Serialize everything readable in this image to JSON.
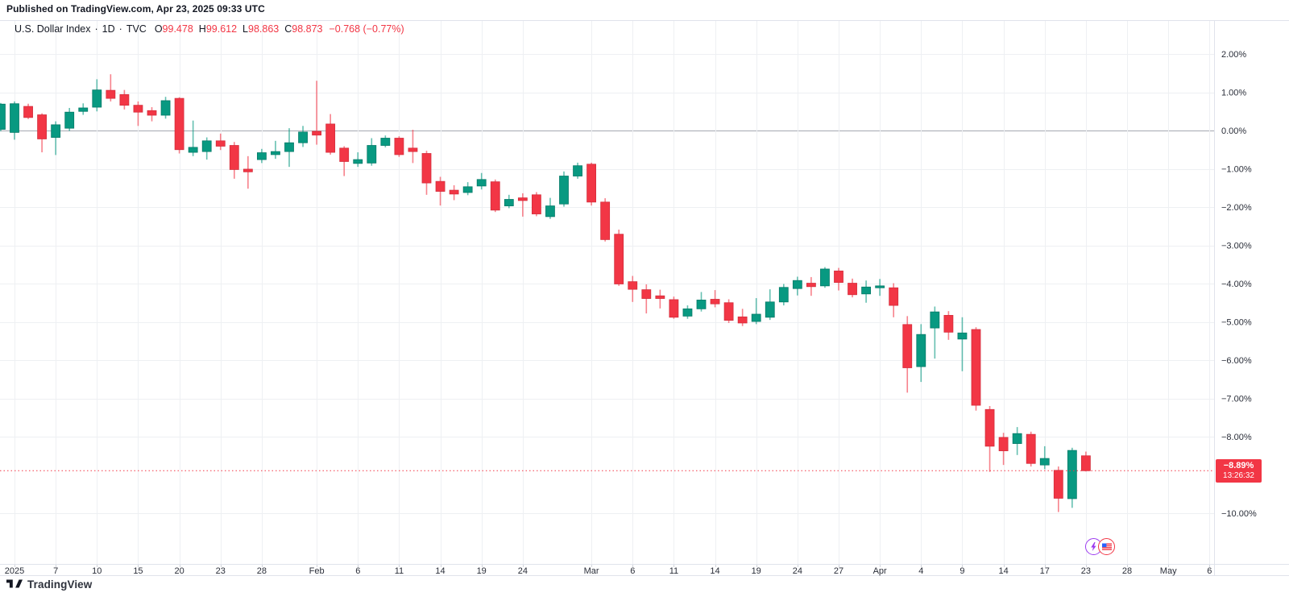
{
  "header": {
    "published": "Published on TradingView.com, Apr 23, 2025 09:33 UTC"
  },
  "legend": {
    "title": "U.S. Dollar Index",
    "separator": "·",
    "interval": "1D",
    "exchange": "TVC",
    "o_label": "O",
    "o_value": "99.478",
    "h_label": "H",
    "h_value": "99.612",
    "l_label": "L",
    "l_value": "98.863",
    "c_label": "C",
    "c_value": "98.873",
    "change": "−0.768 (−0.77%)"
  },
  "price_scale": {
    "unit": "%",
    "labels": [
      {
        "text": "2.00%",
        "pct": 2
      },
      {
        "text": "1.00%",
        "pct": 1
      },
      {
        "text": "0.00%",
        "pct": 0
      },
      {
        "text": "−1.00%",
        "pct": -1
      },
      {
        "text": "−2.00%",
        "pct": -2
      },
      {
        "text": "−3.00%",
        "pct": -3
      },
      {
        "text": "−4.00%",
        "pct": -4
      },
      {
        "text": "−5.00%",
        "pct": -5
      },
      {
        "text": "−6.00%",
        "pct": -6
      },
      {
        "text": "−7.00%",
        "pct": -7
      },
      {
        "text": "−8.00%",
        "pct": -8
      },
      {
        "text": "−10.00%",
        "pct": -10
      }
    ],
    "badge": {
      "price": "−8.89%",
      "countdown": "13:26:32",
      "pct": -8.89
    }
  },
  "time_scale": {
    "labels": [
      {
        "text": "2025",
        "i": 0
      },
      {
        "text": "7",
        "i": 3
      },
      {
        "text": "10",
        "i": 6
      },
      {
        "text": "15",
        "i": 9
      },
      {
        "text": "20",
        "i": 12
      },
      {
        "text": "23",
        "i": 15
      },
      {
        "text": "28",
        "i": 18
      },
      {
        "text": "Feb",
        "i": 22
      },
      {
        "text": "6",
        "i": 25
      },
      {
        "text": "11",
        "i": 28
      },
      {
        "text": "14",
        "i": 31
      },
      {
        "text": "19",
        "i": 34
      },
      {
        "text": "24",
        "i": 37
      },
      {
        "text": "Mar",
        "i": 42
      },
      {
        "text": "6",
        "i": 45
      },
      {
        "text": "11",
        "i": 48
      },
      {
        "text": "14",
        "i": 51
      },
      {
        "text": "19",
        "i": 54
      },
      {
        "text": "24",
        "i": 57
      },
      {
        "text": "27",
        "i": 60
      },
      {
        "text": "Apr",
        "i": 63
      },
      {
        "text": "4",
        "i": 66
      },
      {
        "text": "9",
        "i": 69
      },
      {
        "text": "14",
        "i": 72
      },
      {
        "text": "17",
        "i": 75
      },
      {
        "text": "23",
        "i": 78
      },
      {
        "text": "28",
        "i": 81
      },
      {
        "text": "May",
        "i": 84
      },
      {
        "text": "6",
        "i": 87
      }
    ]
  },
  "events": [
    {
      "name": "economic-event-lightning",
      "i": 78
    },
    {
      "name": "economic-event-us-flag",
      "i": 79
    }
  ],
  "colors": {
    "up": "#089981",
    "up_border": "#067a68",
    "down": "#f23645",
    "down_border": "#d42e3c",
    "grid": "#eef0f3",
    "zero_line": "#a5a8b1",
    "frame": "#e0e3eb",
    "tick": "#d1d4dc",
    "text": "#2a2e39",
    "accent_red": "#f23645",
    "event_purple": "#9c3bf0",
    "flag_blue": "#2962ff"
  },
  "branding": {
    "logo_text": "TradingView"
  },
  "chart_data": {
    "type": "candlestick",
    "title": "U.S. Dollar Index",
    "symbol": "TVC:DXY",
    "interval": "1D",
    "unit": "percent-change",
    "ylim": [
      -10.5,
      2.3
    ],
    "grid": true,
    "last_close_pct": -8.89,
    "candles": [
      {
        "d": "Dec 31",
        "o": 0.03,
        "h": 0.72,
        "l": -0.02,
        "c": 0.69
      },
      {
        "d": "Jan 2",
        "o": -0.05,
        "h": 0.76,
        "l": -0.24,
        "c": 0.7
      },
      {
        "d": "Jan 3",
        "o": 0.63,
        "h": 0.7,
        "l": 0.3,
        "c": 0.34
      },
      {
        "d": "Jan 6",
        "o": 0.41,
        "h": 0.45,
        "l": -0.57,
        "c": -0.22
      },
      {
        "d": "Jan 7",
        "o": -0.18,
        "h": 0.24,
        "l": -0.64,
        "c": 0.15
      },
      {
        "d": "Jan 8",
        "o": 0.06,
        "h": 0.59,
        "l": -0.01,
        "c": 0.48
      },
      {
        "d": "Jan 9",
        "o": 0.5,
        "h": 0.71,
        "l": 0.41,
        "c": 0.59
      },
      {
        "d": "Jan 10",
        "o": 0.61,
        "h": 1.34,
        "l": 0.5,
        "c": 1.06
      },
      {
        "d": "Jan 13",
        "o": 1.05,
        "h": 1.47,
        "l": 0.76,
        "c": 0.84
      },
      {
        "d": "Jan 14",
        "o": 0.94,
        "h": 1.06,
        "l": 0.55,
        "c": 0.66
      },
      {
        "d": "Jan 15",
        "o": 0.66,
        "h": 0.76,
        "l": 0.12,
        "c": 0.48
      },
      {
        "d": "Jan 16",
        "o": 0.52,
        "h": 0.61,
        "l": 0.24,
        "c": 0.4
      },
      {
        "d": "Jan 17",
        "o": 0.4,
        "h": 0.88,
        "l": 0.31,
        "c": 0.78
      },
      {
        "d": "Jan 20",
        "o": 0.84,
        "h": 0.87,
        "l": -0.6,
        "c": -0.5
      },
      {
        "d": "Jan 21",
        "o": -0.57,
        "h": 0.26,
        "l": -0.67,
        "c": -0.44
      },
      {
        "d": "Jan 22",
        "o": -0.55,
        "h": -0.18,
        "l": -0.76,
        "c": -0.27
      },
      {
        "d": "Jan 23",
        "o": -0.27,
        "h": -0.08,
        "l": -0.51,
        "c": -0.41
      },
      {
        "d": "Jan 24",
        "o": -0.39,
        "h": -0.3,
        "l": -1.26,
        "c": -1.02
      },
      {
        "d": "Jan 27",
        "o": -1.01,
        "h": -0.67,
        "l": -1.52,
        "c": -1.08
      },
      {
        "d": "Jan 28",
        "o": -0.76,
        "h": -0.48,
        "l": -0.85,
        "c": -0.58
      },
      {
        "d": "Jan 29",
        "o": -0.63,
        "h": -0.27,
        "l": -0.74,
        "c": -0.55
      },
      {
        "d": "Jan 30",
        "o": -0.55,
        "h": 0.06,
        "l": -0.95,
        "c": -0.32
      },
      {
        "d": "Jan 31",
        "o": -0.32,
        "h": 0.12,
        "l": -0.43,
        "c": -0.04
      },
      {
        "d": "Feb 3",
        "o": -0.02,
        "h": 1.3,
        "l": -0.37,
        "c": -0.12
      },
      {
        "d": "Feb 4",
        "o": 0.17,
        "h": 0.43,
        "l": -0.63,
        "c": -0.57
      },
      {
        "d": "Feb 5",
        "o": -0.46,
        "h": -0.41,
        "l": -1.19,
        "c": -0.81
      },
      {
        "d": "Feb 6",
        "o": -0.86,
        "h": -0.57,
        "l": -0.95,
        "c": -0.76
      },
      {
        "d": "Feb 7",
        "o": -0.85,
        "h": -0.2,
        "l": -0.92,
        "c": -0.39
      },
      {
        "d": "Feb 10",
        "o": -0.39,
        "h": -0.13,
        "l": -0.44,
        "c": -0.2
      },
      {
        "d": "Feb 11",
        "o": -0.2,
        "h": -0.15,
        "l": -0.69,
        "c": -0.63
      },
      {
        "d": "Feb 12",
        "o": -0.46,
        "h": 0.02,
        "l": -0.85,
        "c": -0.55
      },
      {
        "d": "Feb 13",
        "o": -0.6,
        "h": -0.53,
        "l": -1.68,
        "c": -1.37
      },
      {
        "d": "Feb 14",
        "o": -1.33,
        "h": -1.21,
        "l": -1.96,
        "c": -1.59
      },
      {
        "d": "Feb 17",
        "o": -1.56,
        "h": -1.43,
        "l": -1.82,
        "c": -1.66
      },
      {
        "d": "Feb 18",
        "o": -1.62,
        "h": -1.35,
        "l": -1.69,
        "c": -1.47
      },
      {
        "d": "Feb 19",
        "o": -1.45,
        "h": -1.11,
        "l": -1.54,
        "c": -1.28
      },
      {
        "d": "Feb 20",
        "o": -1.34,
        "h": -1.28,
        "l": -2.13,
        "c": -2.08
      },
      {
        "d": "Feb 21",
        "o": -1.97,
        "h": -1.68,
        "l": -2.03,
        "c": -1.8
      },
      {
        "d": "Feb 24",
        "o": -1.76,
        "h": -1.64,
        "l": -2.25,
        "c": -1.83
      },
      {
        "d": "Feb 25",
        "o": -1.68,
        "h": -1.61,
        "l": -2.24,
        "c": -2.18
      },
      {
        "d": "Feb 26",
        "o": -2.25,
        "h": -1.76,
        "l": -2.31,
        "c": -1.97
      },
      {
        "d": "Feb 27",
        "o": -1.92,
        "h": -1.07,
        "l": -1.99,
        "c": -1.19
      },
      {
        "d": "Feb 28",
        "o": -1.19,
        "h": -0.84,
        "l": -1.26,
        "c": -0.92
      },
      {
        "d": "Mar 3",
        "o": -0.88,
        "h": -0.84,
        "l": -1.96,
        "c": -1.87
      },
      {
        "d": "Mar 4",
        "o": -1.87,
        "h": -1.77,
        "l": -2.9,
        "c": -2.85
      },
      {
        "d": "Mar 5",
        "o": -2.71,
        "h": -2.59,
        "l": -4.06,
        "c": -4.01
      },
      {
        "d": "Mar 6",
        "o": -3.95,
        "h": -3.8,
        "l": -4.48,
        "c": -4.15
      },
      {
        "d": "Mar 7",
        "o": -4.16,
        "h": -4.02,
        "l": -4.78,
        "c": -4.39
      },
      {
        "d": "Mar 10",
        "o": -4.32,
        "h": -4.16,
        "l": -4.65,
        "c": -4.39
      },
      {
        "d": "Mar 11",
        "o": -4.42,
        "h": -4.34,
        "l": -4.92,
        "c": -4.88
      },
      {
        "d": "Mar 12",
        "o": -4.85,
        "h": -4.57,
        "l": -4.92,
        "c": -4.66
      },
      {
        "d": "Mar 13",
        "o": -4.66,
        "h": -4.22,
        "l": -4.73,
        "c": -4.43
      },
      {
        "d": "Mar 14",
        "o": -4.41,
        "h": -4.17,
        "l": -4.62,
        "c": -4.53
      },
      {
        "d": "Mar 17",
        "o": -4.5,
        "h": -4.41,
        "l": -5.03,
        "c": -4.96
      },
      {
        "d": "Mar 18",
        "o": -4.87,
        "h": -4.66,
        "l": -5.11,
        "c": -5.03
      },
      {
        "d": "Mar 19",
        "o": -4.99,
        "h": -4.38,
        "l": -5.06,
        "c": -4.8
      },
      {
        "d": "Mar 20",
        "o": -4.88,
        "h": -4.15,
        "l": -4.95,
        "c": -4.48
      },
      {
        "d": "Mar 21",
        "o": -4.48,
        "h": -4.01,
        "l": -4.57,
        "c": -4.1
      },
      {
        "d": "Mar 24",
        "o": -4.13,
        "h": -3.82,
        "l": -4.31,
        "c": -3.92
      },
      {
        "d": "Mar 25",
        "o": -3.99,
        "h": -3.83,
        "l": -4.32,
        "c": -4.08
      },
      {
        "d": "Mar 26",
        "o": -4.06,
        "h": -3.57,
        "l": -4.11,
        "c": -3.62
      },
      {
        "d": "Mar 27",
        "o": -3.67,
        "h": -3.59,
        "l": -4.18,
        "c": -3.97
      },
      {
        "d": "Mar 28",
        "o": -3.99,
        "h": -3.87,
        "l": -4.36,
        "c": -4.29
      },
      {
        "d": "Mar 31",
        "o": -4.27,
        "h": -3.92,
        "l": -4.5,
        "c": -4.09
      },
      {
        "d": "Apr 1",
        "o": -4.11,
        "h": -3.88,
        "l": -4.32,
        "c": -4.06
      },
      {
        "d": "Apr 2",
        "o": -4.11,
        "h": -3.99,
        "l": -4.88,
        "c": -4.57
      },
      {
        "d": "Apr 3",
        "o": -5.07,
        "h": -4.85,
        "l": -6.85,
        "c": -6.2
      },
      {
        "d": "Apr 4",
        "o": -6.17,
        "h": -5.06,
        "l": -6.57,
        "c": -5.33
      },
      {
        "d": "Apr 7",
        "o": -5.16,
        "h": -4.6,
        "l": -5.96,
        "c": -4.74
      },
      {
        "d": "Apr 8",
        "o": -4.83,
        "h": -4.72,
        "l": -5.47,
        "c": -5.27
      },
      {
        "d": "Apr 9",
        "o": -5.45,
        "h": -4.88,
        "l": -6.29,
        "c": -5.29
      },
      {
        "d": "Apr 10",
        "o": -5.2,
        "h": -5.14,
        "l": -7.32,
        "c": -7.18
      },
      {
        "d": "Apr 11",
        "o": -7.29,
        "h": -7.2,
        "l": -8.92,
        "c": -8.25
      },
      {
        "d": "Apr 14",
        "o": -8.02,
        "h": -7.9,
        "l": -8.74,
        "c": -8.37
      },
      {
        "d": "Apr 15",
        "o": -8.18,
        "h": -7.75,
        "l": -8.48,
        "c": -7.92
      },
      {
        "d": "Apr 16",
        "o": -7.94,
        "h": -7.87,
        "l": -8.78,
        "c": -8.7
      },
      {
        "d": "Apr 17",
        "o": -8.74,
        "h": -8.25,
        "l": -8.85,
        "c": -8.57
      },
      {
        "d": "Apr 21",
        "o": -8.88,
        "h": -8.78,
        "l": -9.97,
        "c": -9.61
      },
      {
        "d": "Apr 22",
        "o": -9.62,
        "h": -8.29,
        "l": -9.86,
        "c": -8.36
      },
      {
        "d": "Apr 23",
        "o": -8.5,
        "h": -8.39,
        "l": -8.91,
        "c": -8.89
      }
    ]
  }
}
